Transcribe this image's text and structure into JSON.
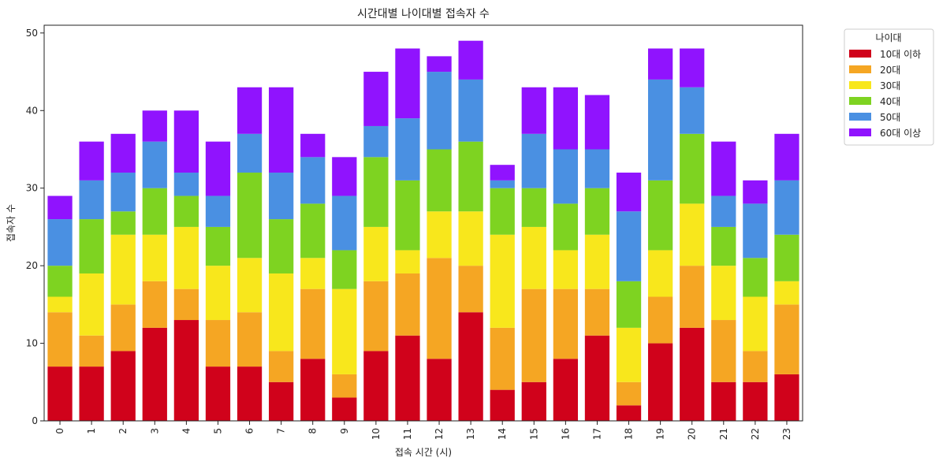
{
  "chart_data": {
    "type": "bar",
    "stacked": true,
    "title": "시간대별 나이대별 접속자 수",
    "xlabel": "접속 시간 (시)",
    "ylabel": "접속자 수",
    "categories": [
      "0",
      "1",
      "2",
      "3",
      "4",
      "5",
      "6",
      "7",
      "8",
      "9",
      "10",
      "11",
      "12",
      "13",
      "14",
      "15",
      "16",
      "17",
      "18",
      "19",
      "20",
      "21",
      "22",
      "23"
    ],
    "ylim": [
      0,
      51
    ],
    "yticks": [
      0,
      10,
      20,
      30,
      40,
      50
    ],
    "grid": false,
    "legend_title": "나이대",
    "legend_position": "outside-top-right",
    "series": [
      {
        "name": "10대 이하",
        "color": "#d0021b",
        "values": [
          7,
          7,
          9,
          12,
          13,
          7,
          7,
          5,
          8,
          3,
          9,
          11,
          8,
          14,
          4,
          5,
          8,
          11,
          2,
          10,
          12,
          5,
          5,
          6
        ]
      },
      {
        "name": "20대",
        "color": "#f5a623",
        "values": [
          7,
          4,
          6,
          6,
          4,
          6,
          7,
          4,
          9,
          3,
          9,
          8,
          13,
          6,
          8,
          12,
          9,
          6,
          3,
          6,
          8,
          8,
          4,
          9
        ]
      },
      {
        "name": "30대",
        "color": "#f8e71c",
        "values": [
          2,
          8,
          9,
          6,
          8,
          7,
          7,
          10,
          4,
          11,
          7,
          3,
          6,
          7,
          12,
          8,
          5,
          7,
          7,
          6,
          8,
          7,
          7,
          3
        ]
      },
      {
        "name": "40대",
        "color": "#7ed321",
        "values": [
          4,
          7,
          3,
          6,
          4,
          5,
          11,
          7,
          7,
          5,
          9,
          9,
          8,
          9,
          6,
          5,
          6,
          6,
          6,
          9,
          9,
          5,
          5,
          6
        ]
      },
      {
        "name": "50대",
        "color": "#4a90e2",
        "values": [
          6,
          5,
          5,
          6,
          3,
          4,
          5,
          6,
          6,
          7,
          4,
          8,
          10,
          8,
          1,
          7,
          7,
          5,
          9,
          13,
          6,
          4,
          7,
          7
        ]
      },
      {
        "name": "60대 이상",
        "color": "#9013fe",
        "values": [
          3,
          5,
          5,
          4,
          8,
          7,
          6,
          11,
          3,
          5,
          7,
          9,
          2,
          5,
          2,
          6,
          8,
          7,
          5,
          4,
          5,
          7,
          3,
          6
        ]
      }
    ]
  }
}
